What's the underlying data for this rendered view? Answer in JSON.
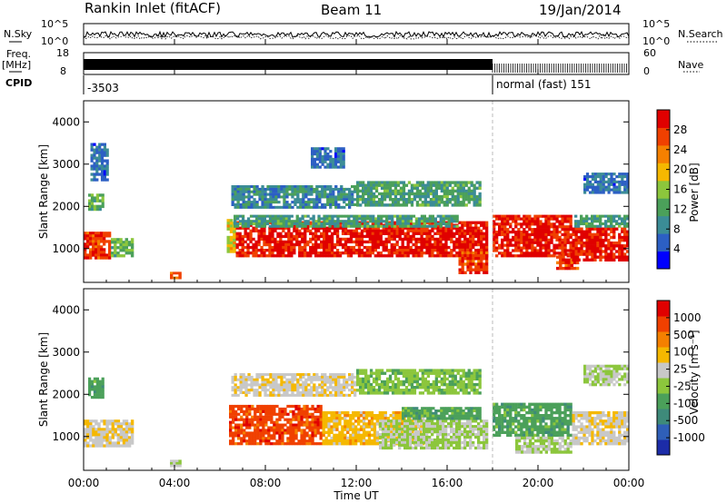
{
  "header": {
    "station": "Rankin Inlet (fitACF)",
    "beam": "Beam 11",
    "date": "19/Jan/2014"
  },
  "status_panel": {
    "left_labels": {
      "nsky": "N.Sky",
      "freq": "Freq.",
      "freq_unit": "[MHz]",
      "cpid": "CPID"
    },
    "right_labels": {
      "nsearch": "N.Search",
      "nave": "Nave"
    },
    "nsky_ticks": [
      "10^5",
      "10^0"
    ],
    "freq_ticks": [
      "18",
      "8"
    ],
    "nave_ticks": [
      "60",
      "0"
    ],
    "cpid_segments": [
      {
        "label": "-3503",
        "start_hour": 0,
        "end_hour": 18.0
      },
      {
        "label": "normal (fast) 151",
        "start_hour": 18.0,
        "end_hour": 24.0
      }
    ]
  },
  "chart_data": [
    {
      "type": "heatmap",
      "panel": "power",
      "ylabel": "Slant Range [km]",
      "xlabel": "",
      "x_range_hours": [
        0,
        24
      ],
      "ylim": [
        200,
        4500
      ],
      "y_ticks": [
        1000,
        2000,
        3000,
        4000
      ],
      "colorbar": {
        "label": "Power [dB]",
        "ticks": [
          "28",
          "24",
          "20",
          "16",
          "12",
          "8",
          "4"
        ],
        "colors": [
          "#0000ff",
          "#2c5fc4",
          "#3b8c96",
          "#4ba05a",
          "#8cc63c",
          "#f5b800",
          "#f58000",
          "#f04000",
          "#e00000"
        ]
      },
      "echo_regions": [
        {
          "t0": 0.0,
          "t1": 1.2,
          "r0": 750,
          "r1": 1400,
          "value": 26
        },
        {
          "t0": 1.2,
          "t1": 2.2,
          "r0": 800,
          "r1": 1250,
          "value": 14
        },
        {
          "t0": 0.2,
          "t1": 0.9,
          "r0": 1900,
          "r1": 2300,
          "value": 14
        },
        {
          "t0": 0.3,
          "t1": 1.1,
          "r0": 2600,
          "r1": 3500,
          "value": 8
        },
        {
          "t0": 3.8,
          "t1": 4.3,
          "r0": 280,
          "r1": 450,
          "value": 24
        },
        {
          "t0": 6.3,
          "t1": 6.7,
          "r0": 900,
          "r1": 1700,
          "value": 18
        },
        {
          "t0": 6.7,
          "t1": 17.8,
          "r0": 800,
          "r1": 1650,
          "value": 28
        },
        {
          "t0": 6.6,
          "t1": 16.5,
          "r0": 1500,
          "r1": 1800,
          "value": 12
        },
        {
          "t0": 6.5,
          "t1": 12.0,
          "r0": 1950,
          "r1": 2500,
          "value": 10
        },
        {
          "t0": 12.0,
          "t1": 17.5,
          "r0": 2000,
          "r1": 2600,
          "value": 12
        },
        {
          "t0": 16.5,
          "t1": 17.8,
          "r0": 400,
          "r1": 1000,
          "value": 26
        },
        {
          "t0": 18.0,
          "t1": 21.5,
          "r0": 800,
          "r1": 1800,
          "value": 28
        },
        {
          "t0": 20.8,
          "t1": 21.8,
          "r0": 500,
          "r1": 900,
          "value": 26
        },
        {
          "t0": 21.5,
          "t1": 24.0,
          "r0": 700,
          "r1": 1500,
          "value": 28
        },
        {
          "t0": 21.6,
          "t1": 24.0,
          "r0": 1500,
          "r1": 1800,
          "value": 12
        },
        {
          "t0": 22.0,
          "t1": 24.0,
          "r0": 2300,
          "r1": 2800,
          "value": 8
        },
        {
          "t0": 10.0,
          "t1": 11.5,
          "r0": 2900,
          "r1": 3400,
          "value": 8
        }
      ]
    },
    {
      "type": "heatmap",
      "panel": "velocity",
      "ylabel": "Slant Range [km]",
      "xlabel": "Time UT",
      "x_range_hours": [
        0,
        24
      ],
      "x_ticks": [
        "00:00",
        "04:00",
        "08:00",
        "12:00",
        "16:00",
        "20:00",
        "00:00"
      ],
      "ylim": [
        200,
        4500
      ],
      "y_ticks": [
        1000,
        2000,
        3000,
        4000
      ],
      "colorbar": {
        "label": "Velocity [m s⁻¹]",
        "ticks": [
          "1000",
          "500",
          "100",
          "25",
          "-25",
          "-100",
          "-500",
          "-1000"
        ],
        "colors": [
          "#1c2ca8",
          "#2f5fb8",
          "#3e8a7a",
          "#4ba05a",
          "#8cc63c",
          "#c8c8c8",
          "#f5b800",
          "#f58000",
          "#f04000",
          "#e00000"
        ]
      },
      "echo_regions": [
        {
          "t0": 0.0,
          "t1": 2.2,
          "r0": 750,
          "r1": 1400,
          "value": 150
        },
        {
          "t0": 0.2,
          "t1": 0.9,
          "r0": 1900,
          "r1": 2400,
          "value": -300
        },
        {
          "t0": 3.8,
          "t1": 4.3,
          "r0": 280,
          "r1": 450,
          "value": 0
        },
        {
          "t0": 6.4,
          "t1": 10.5,
          "r0": 800,
          "r1": 1750,
          "value": 700
        },
        {
          "t0": 10.5,
          "t1": 15.0,
          "r0": 800,
          "r1": 1600,
          "value": 300
        },
        {
          "t0": 13.0,
          "t1": 17.8,
          "r0": 700,
          "r1": 1400,
          "value": 0
        },
        {
          "t0": 14.0,
          "t1": 17.5,
          "r0": 1400,
          "r1": 1700,
          "value": -300
        },
        {
          "t0": 18.0,
          "t1": 21.5,
          "r0": 1000,
          "r1": 1800,
          "value": -300
        },
        {
          "t0": 19.0,
          "t1": 21.5,
          "r0": 600,
          "r1": 1000,
          "value": 0
        },
        {
          "t0": 21.5,
          "t1": 24.0,
          "r0": 800,
          "r1": 1600,
          "value": 150
        },
        {
          "t0": 22.0,
          "t1": 24.0,
          "r0": 2200,
          "r1": 2700,
          "value": 0
        },
        {
          "t0": 6.5,
          "t1": 12.0,
          "r0": 1950,
          "r1": 2500,
          "value": 150
        },
        {
          "t0": 12.0,
          "t1": 17.5,
          "r0": 2000,
          "r1": 2600,
          "value": -150
        }
      ]
    }
  ]
}
